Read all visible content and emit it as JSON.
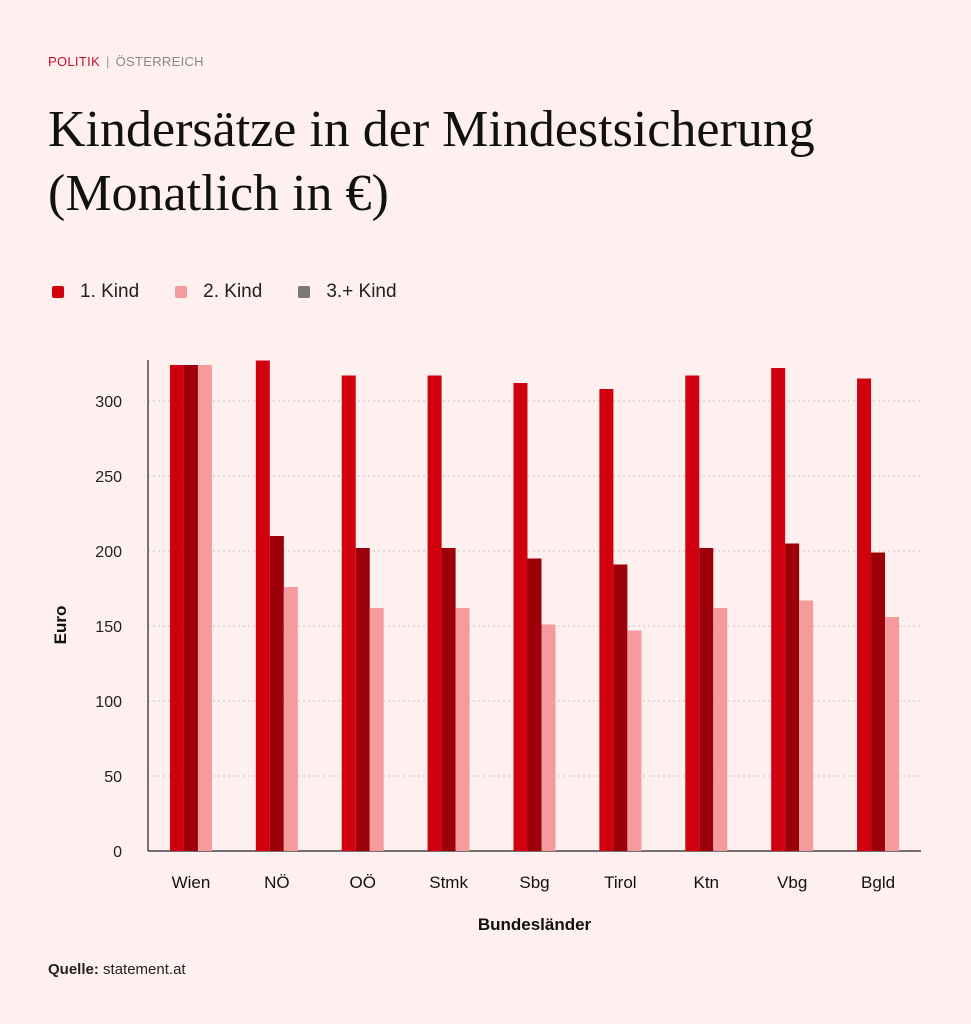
{
  "header": {
    "section": "POLITIK",
    "separator": "|",
    "subsection": "ÖSTERREICH",
    "title": "Kindersätze in der Mindestsicherung (Monatlich in €)"
  },
  "legend": [
    {
      "label": "1. Kind",
      "color": "#d1000f"
    },
    {
      "label": "2. Kind",
      "color": "#f59b9e"
    },
    {
      "label": "3.+ Kind",
      "color": "#7a7a7a"
    }
  ],
  "chart_data": {
    "type": "bar",
    "title": "Kindersätze in der Mindestsicherung (Monatlich in €)",
    "xlabel": "Bundesländer",
    "ylabel": "Euro",
    "ylim": [
      0,
      330
    ],
    "yticks": [
      0,
      50,
      100,
      150,
      200,
      250,
      300
    ],
    "grid": true,
    "categories": [
      "Wien",
      "NÖ",
      "OÖ",
      "Stmk",
      "Sbg",
      "Tirol",
      "Ktn",
      "Vbg",
      "Bgld"
    ],
    "series": [
      {
        "name": "1. Kind",
        "color": "#d1000f",
        "values": [
          324,
          327,
          317,
          317,
          312,
          308,
          317,
          322,
          315
        ]
      },
      {
        "name": "3.+ Kind",
        "color": "#9c0008",
        "values": [
          324,
          210,
          202,
          202,
          195,
          191,
          202,
          205,
          199
        ]
      },
      {
        "name": "2. Kind",
        "color": "#f59b9e",
        "values": [
          324,
          176,
          162,
          162,
          151,
          147,
          162,
          167,
          156
        ]
      }
    ]
  },
  "footer": {
    "source_label": "Quelle:",
    "source_value": "statement.at"
  }
}
